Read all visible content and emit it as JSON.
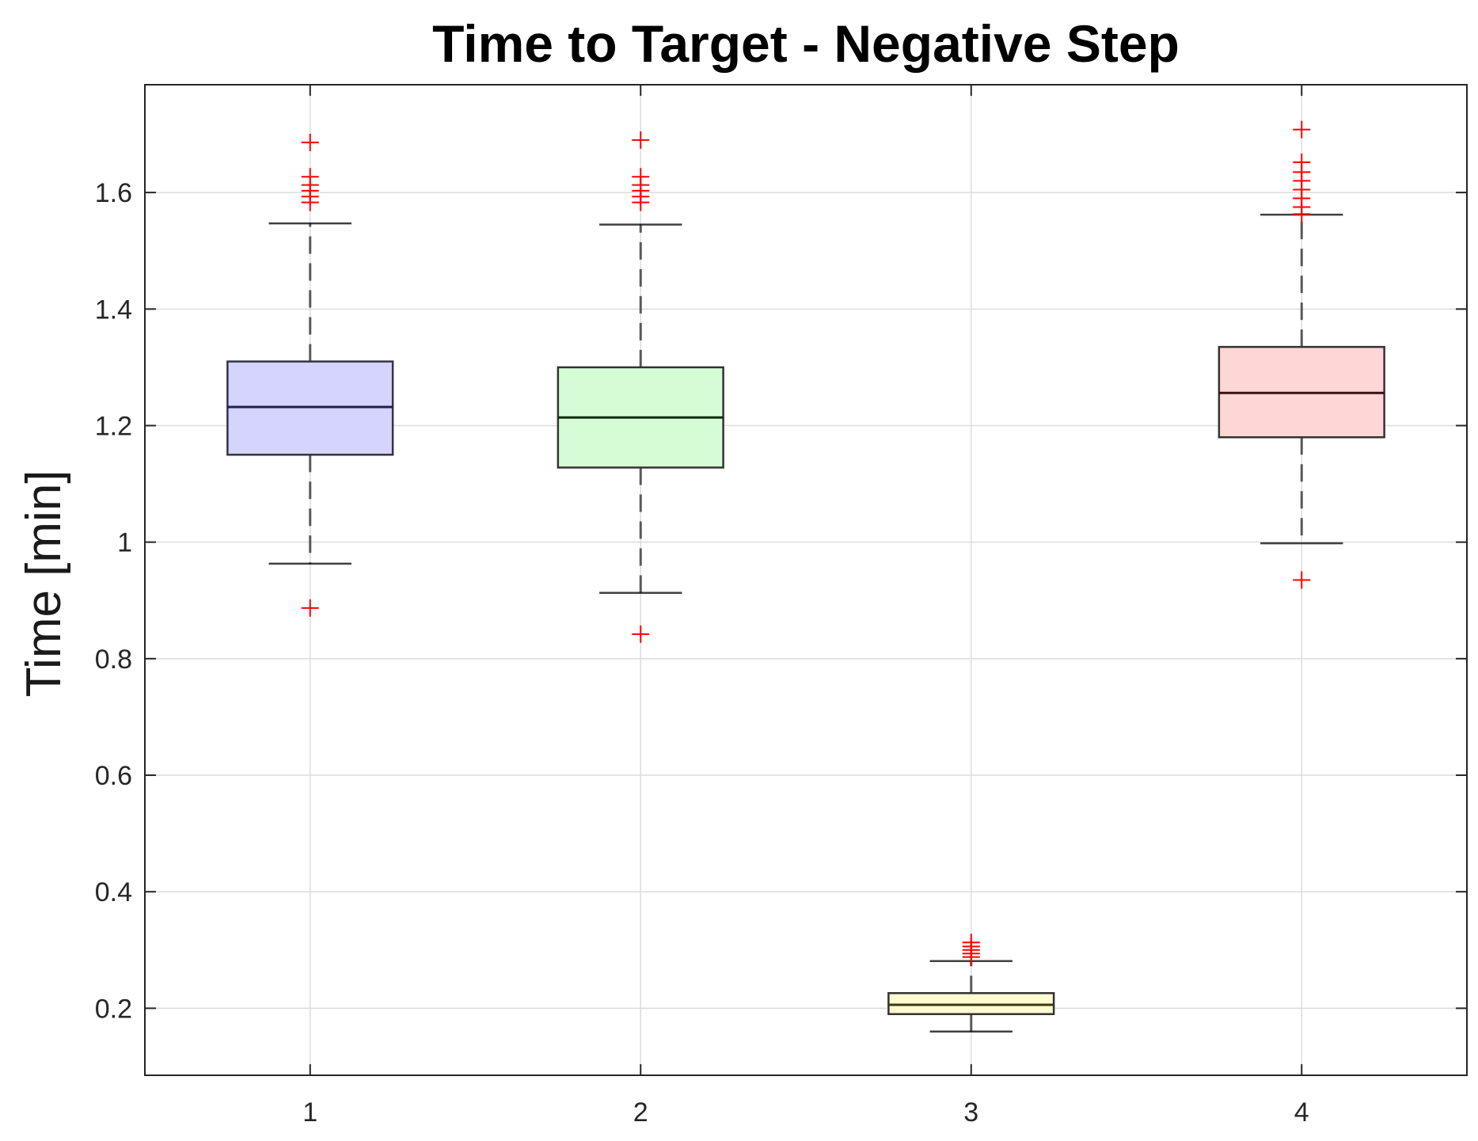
{
  "chart_data": {
    "type": "box",
    "title": "Time to Target - Negative Step",
    "xlabel": "",
    "ylabel": "Time [min]",
    "categories": [
      "1",
      "2",
      "3",
      "4"
    ],
    "x_ticks": [
      "1",
      "2",
      "3",
      "4"
    ],
    "y_ticks": [
      0.2,
      0.4,
      0.6,
      0.8,
      1,
      1.2,
      1.4,
      1.6
    ],
    "y_tick_labels": [
      "0.2",
      "0.4",
      "0.6",
      "0.8",
      "1",
      "1.2",
      "1.4",
      "1.6"
    ],
    "ylim": [
      0.085,
      1.785
    ],
    "xlim": [
      0.5,
      4.5
    ],
    "grid": true,
    "outlier_marker": "+",
    "colors": {
      "whisker": "#5a5a5a",
      "outlier": "#ff0000",
      "grid": "#dcdcdc",
      "axes": "#262626"
    },
    "boxes": [
      {
        "category": "1",
        "q1": 1.15,
        "median": 1.232,
        "q3": 1.31,
        "whisker_low": 0.963,
        "whisker_high": 1.547,
        "outliers": [
          0.887,
          1.583,
          1.593,
          1.603,
          1.613,
          1.627,
          1.686
        ],
        "fill": "#d4d4ff",
        "edge": "#333344",
        "median_color": "#1e1e50"
      },
      {
        "category": "2",
        "q1": 1.128,
        "median": 1.214,
        "q3": 1.3,
        "whisker_low": 0.913,
        "whisker_high": 1.545,
        "outliers": [
          0.842,
          1.583,
          1.593,
          1.603,
          1.613,
          1.627,
          1.69
        ],
        "fill": "#d6fcd6",
        "edge": "#333333",
        "median_color": "#0e2e0e"
      },
      {
        "category": "3",
        "q1": 0.19,
        "median": 0.206,
        "q3": 0.226,
        "whisker_low": 0.16,
        "whisker_high": 0.281,
        "outliers": [
          0.288,
          0.294,
          0.3,
          0.306,
          0.313
        ],
        "fill": "#fffbd0",
        "edge": "#333333",
        "median_color": "#3a3a10"
      },
      {
        "category": "4",
        "q1": 1.18,
        "median": 1.256,
        "q3": 1.335,
        "whisker_low": 0.998,
        "whisker_high": 1.562,
        "outliers": [
          0.935,
          1.563,
          1.575,
          1.59,
          1.605,
          1.62,
          1.635,
          1.652,
          1.708
        ],
        "fill": "#ffd6d6",
        "edge": "#333333",
        "median_color": "#3a1010"
      }
    ]
  }
}
